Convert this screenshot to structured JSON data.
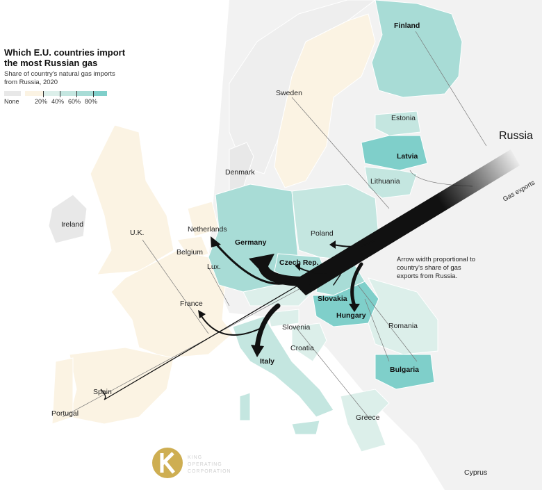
{
  "legend": {
    "title": "Which E.U. countries import the most Russian gas",
    "subtitle": "Share of country's natural gas imports from Russia, 2020",
    "none_label": "None",
    "ticks": [
      "20%",
      "40%",
      "60%",
      "80%"
    ],
    "colors": {
      "none": "#e8e8e8",
      "low": "#fbf3e3",
      "c20": "#dcefea",
      "c40": "#c4e6e0",
      "c60": "#a8dcd6",
      "c80": "#7fcfca"
    }
  },
  "countries": {
    "finland": "Finland",
    "sweden": "Sweden",
    "estonia": "Estonia",
    "latvia": "Latvia",
    "lithuania": "Lithuania",
    "denmark": "Denmark",
    "ireland": "Ireland",
    "uk": "U.K.",
    "netherlands": "Netherlands",
    "belgium": "Belgium",
    "lux": "Lux.",
    "germany": "Germany",
    "poland": "Poland",
    "czech": "Czech Rep.",
    "slovakia": "Slovakia",
    "hungary": "Hungary",
    "france": "France",
    "slovenia": "Slovenia",
    "croatia": "Croatia",
    "romania": "Romania",
    "italy": "Italy",
    "bulgaria": "Bulgaria",
    "spain": "Spain",
    "portugal": "Portugal",
    "greece": "Greece",
    "cyprus": "Cyprus",
    "russia": "Russia"
  },
  "annotations": {
    "gas_exports": "Gas exports",
    "arrow_note": "Arrow width proportional to country's share of gas exports from Russia."
  },
  "watermark": "KING OPERATING CORPORATION"
}
